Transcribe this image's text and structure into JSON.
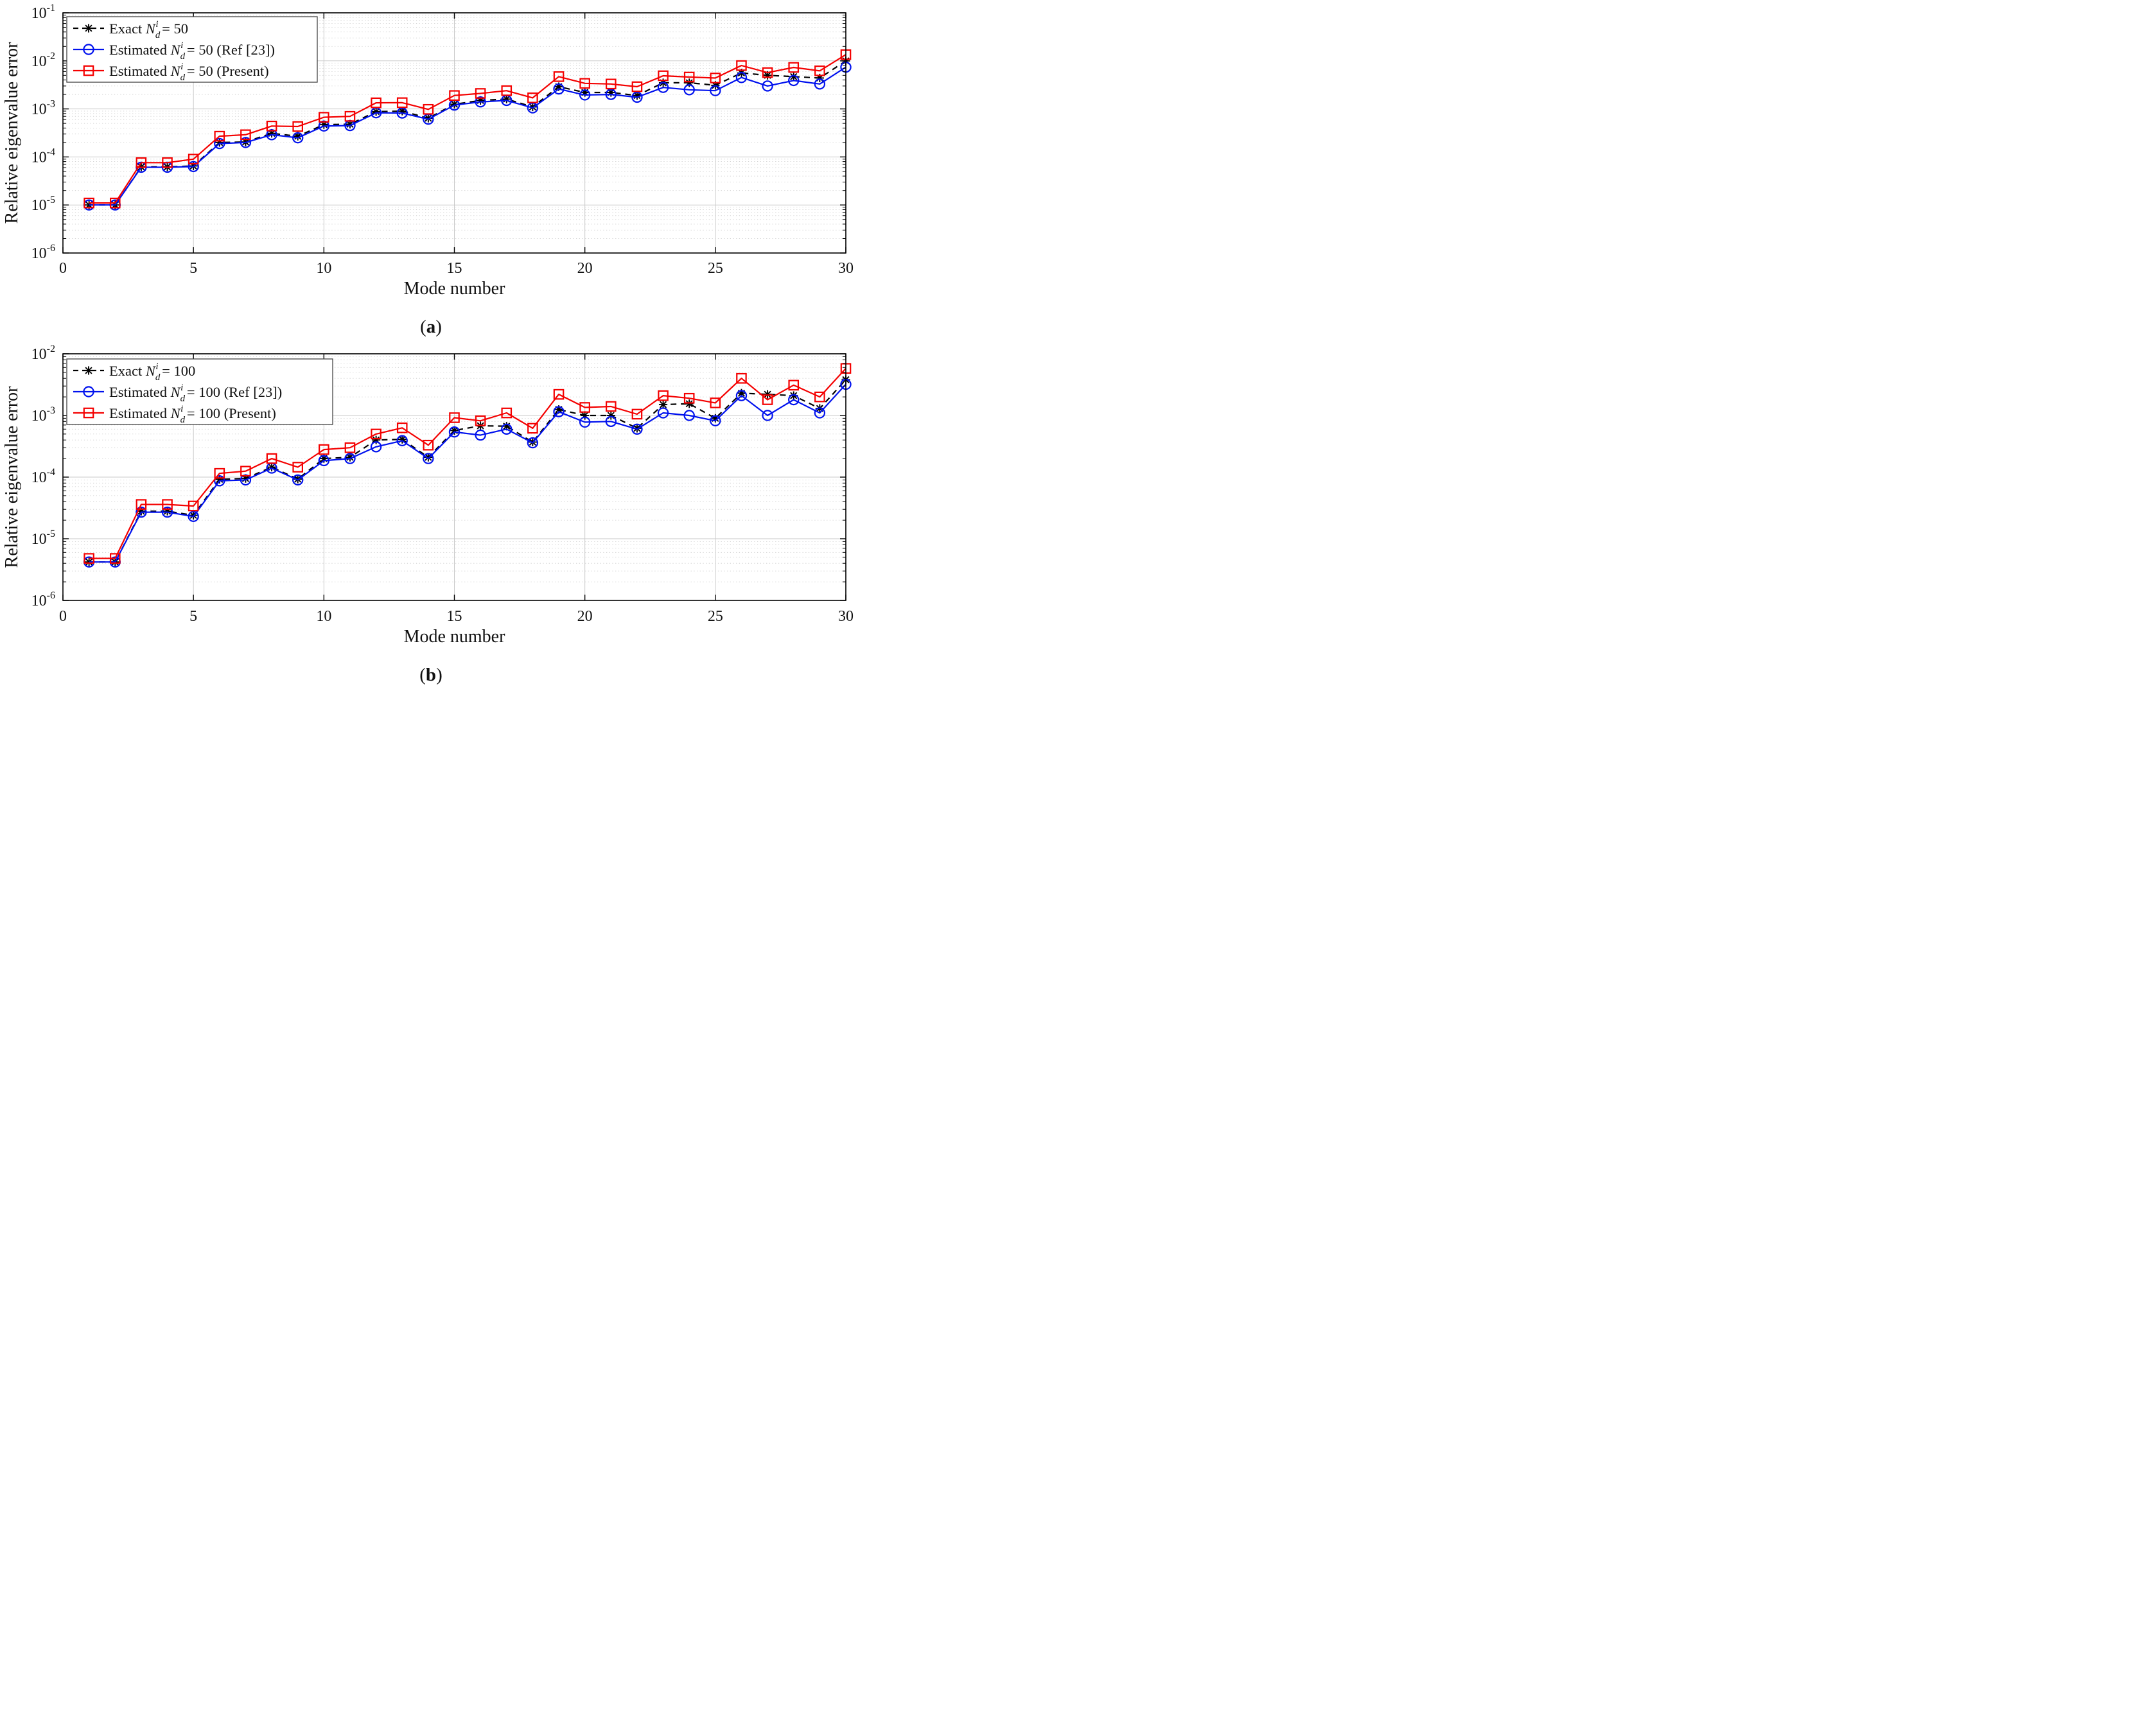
{
  "figure": {
    "background": "#ffffff",
    "xlabel": "Mode number",
    "ylabel": "Relative eigenvalue error",
    "captions": {
      "a": "(a)",
      "b": "(b)"
    }
  },
  "colors": {
    "exact": "#000000",
    "ref23": "#0011ee",
    "present": "#f40000",
    "grid_major": "#c9c9c9",
    "grid_minor": "#c9c9c9",
    "axis": "#000000",
    "legend_border": "#444444"
  },
  "chart_data": [
    {
      "type": "line",
      "id": "a",
      "caption": "(a)",
      "xlabel": "Mode number",
      "ylabel": "Relative eigenvalue error",
      "log_scale_y": true,
      "grid": "major+minor",
      "legend_position": "top-left",
      "xlim": [
        0,
        30
      ],
      "x_tick_values": [
        0,
        5,
        10,
        15,
        20,
        25,
        30
      ],
      "x_tick_labels": [
        "0",
        "5",
        "10",
        "15",
        "20",
        "25",
        "30"
      ],
      "y_tick_exponents": [
        -1,
        -2,
        -3,
        -4,
        -5,
        -6
      ],
      "x": [
        1,
        2,
        3,
        4,
        5,
        6,
        7,
        8,
        9,
        10,
        11,
        12,
        13,
        14,
        15,
        16,
        17,
        18,
        19,
        20,
        21,
        22,
        23,
        24,
        25,
        26,
        27,
        28,
        29,
        30
      ],
      "series": [
        {
          "name": "Exact N_d^i = 50",
          "color": "#000000",
          "line": "dashed",
          "marker": "asterisk",
          "values": [
            1e-05,
            1e-05,
            6.2e-05,
            6.2e-05,
            6.5e-05,
            0.0002,
            0.000205,
            0.00031,
            0.00027,
            0.00047,
            0.00048,
            0.00088,
            0.0009,
            0.00064,
            0.00125,
            0.0015,
            0.0016,
            0.0011,
            0.0029,
            0.0022,
            0.0022,
            0.0019,
            0.0035,
            0.0035,
            0.0031,
            0.0056,
            0.005,
            0.0047,
            0.0044,
            0.01
          ]
        },
        {
          "name": "Estimated N_d^i = 50 (Ref [23])",
          "color": "#0011ee",
          "line": "solid",
          "marker": "circle",
          "values": [
            1e-05,
            1e-05,
            6.1e-05,
            6.1e-05,
            6.3e-05,
            0.00019,
            0.0002,
            0.00029,
            0.00025,
            0.00044,
            0.00045,
            0.00083,
            0.00082,
            0.00061,
            0.0012,
            0.0014,
            0.0015,
            0.00105,
            0.0026,
            0.00195,
            0.002,
            0.00175,
            0.0028,
            0.0025,
            0.0024,
            0.0045,
            0.003,
            0.0039,
            0.0033,
            0.0074
          ]
        },
        {
          "name": "Estimated N_d^i = 50 (Present)",
          "color": "#f40000",
          "line": "solid",
          "marker": "square",
          "values": [
            1.1e-05,
            1.1e-05,
            7.6e-05,
            7.6e-05,
            9e-05,
            0.00027,
            0.00029,
            0.00044,
            0.00043,
            0.00067,
            0.0007,
            0.00134,
            0.00135,
            0.00098,
            0.0019,
            0.0021,
            0.0024,
            0.0017,
            0.0047,
            0.0034,
            0.0033,
            0.0029,
            0.0049,
            0.0046,
            0.0044,
            0.008,
            0.0057,
            0.0073,
            0.0062,
            0.0135
          ]
        }
      ]
    },
    {
      "type": "line",
      "id": "b",
      "caption": "(b)",
      "xlabel": "Mode number",
      "ylabel": "Relative eigenvalue error",
      "log_scale_y": true,
      "grid": "major+minor",
      "legend_position": "top-left",
      "xlim": [
        0,
        30
      ],
      "x_tick_values": [
        0,
        5,
        10,
        15,
        20,
        25,
        30
      ],
      "x_tick_labels": [
        "0",
        "5",
        "10",
        "15",
        "20",
        "25",
        "30"
      ],
      "y_tick_exponents": [
        -2,
        -3,
        -4,
        -5,
        -6
      ],
      "x": [
        1,
        2,
        3,
        4,
        5,
        6,
        7,
        8,
        9,
        10,
        11,
        12,
        13,
        14,
        15,
        16,
        17,
        18,
        19,
        20,
        21,
        22,
        23,
        24,
        25,
        26,
        27,
        28,
        29,
        30
      ],
      "series": [
        {
          "name": "Exact N_d^i = 100",
          "color": "#000000",
          "line": "dashed",
          "marker": "asterisk",
          "values": [
            4.2e-06,
            4.2e-06,
            2.8e-05,
            2.8e-05,
            2.4e-05,
            9.2e-05,
            9.5e-05,
            0.000145,
            9.3e-05,
            0.0002,
            0.00021,
            0.0004,
            0.00041,
            0.00021,
            0.00057,
            0.00068,
            0.00067,
            0.00037,
            0.00125,
            0.001,
            0.001,
            0.00062,
            0.0015,
            0.00155,
            0.0009,
            0.0023,
            0.0022,
            0.0021,
            0.0013,
            0.0038
          ]
        },
        {
          "name": "Estimated N_d^i = 100 (Ref [23])",
          "color": "#0011ee",
          "line": "solid",
          "marker": "circle",
          "values": [
            4.2e-06,
            4.2e-06,
            2.7e-05,
            2.7e-05,
            2.3e-05,
            8.7e-05,
            9e-05,
            0.00014,
            9e-05,
            0.000185,
            0.0002,
            0.00031,
            0.00039,
            0.0002,
            0.00054,
            0.00048,
            0.0006,
            0.00036,
            0.00115,
            0.00078,
            0.0008,
            0.0006,
            0.0011,
            0.001,
            0.00082,
            0.0021,
            0.001,
            0.0018,
            0.0011,
            0.0032
          ]
        },
        {
          "name": "Estimated N_d^i = 100 (Present)",
          "color": "#f40000",
          "line": "solid",
          "marker": "square",
          "values": [
            4.8e-06,
            4.8e-06,
            3.6e-05,
            3.6e-05,
            3.4e-05,
            0.000115,
            0.000125,
            0.0002,
            0.000145,
            0.00028,
            0.0003,
            0.0005,
            0.00063,
            0.00033,
            0.00092,
            0.00082,
            0.0011,
            0.00062,
            0.0022,
            0.00135,
            0.0014,
            0.00105,
            0.0021,
            0.0019,
            0.0016,
            0.004,
            0.0018,
            0.0031,
            0.002,
            0.0058
          ]
        }
      ]
    }
  ]
}
